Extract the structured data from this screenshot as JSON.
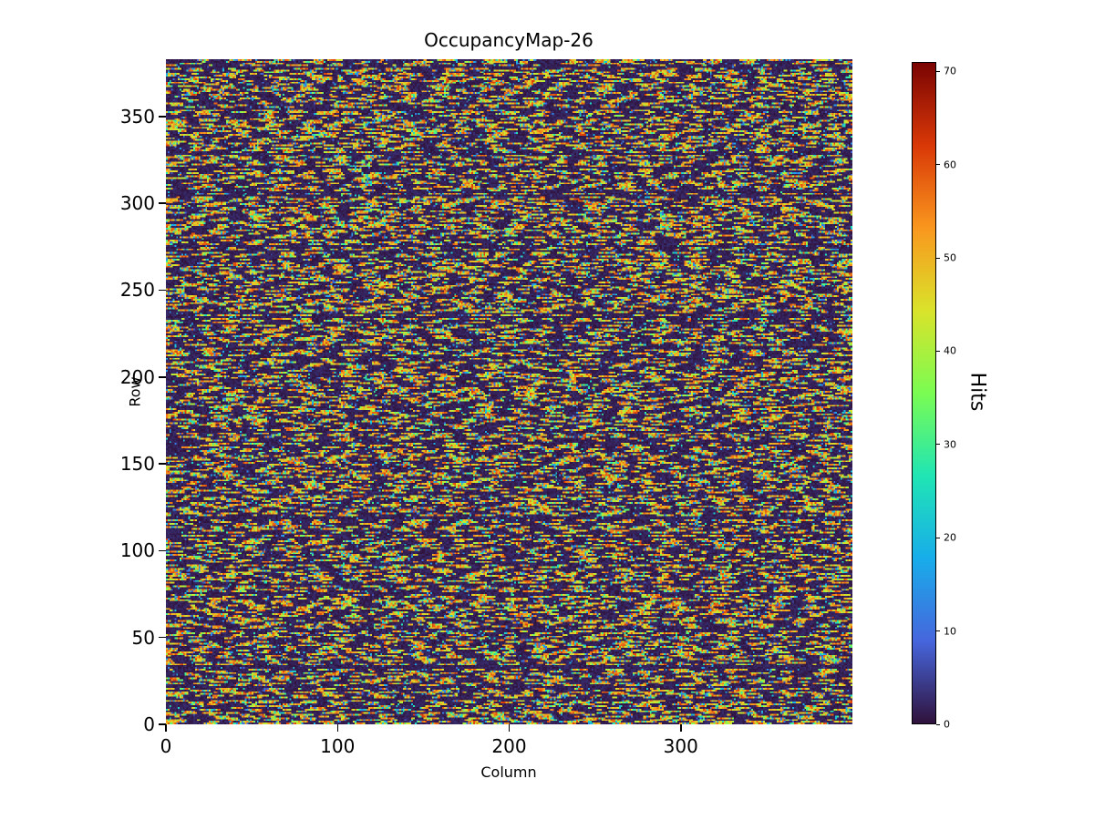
{
  "figure": {
    "background": "#ffffff"
  },
  "chart_data": {
    "type": "heatmap",
    "title": "OccupancyMap-26",
    "xlabel": "Column",
    "ylabel": "Row",
    "x_range": [
      0,
      400
    ],
    "y_range": [
      0,
      383
    ],
    "x_ticks": [
      0,
      100,
      200,
      300
    ],
    "y_ticks": [
      0,
      50,
      100,
      150,
      200,
      250,
      300,
      350
    ],
    "grid": false,
    "colorbar": {
      "label": "Hits",
      "ticks": [
        0,
        10,
        20,
        30,
        40,
        50,
        60,
        70
      ],
      "vmin": 0,
      "vmax": 71,
      "colormap": "turbo"
    },
    "pattern": {
      "description": "Dense noisy occupancy map: dark near-zero background (~0-3 hits) with horizontal dashed streaks of high occupancy (~40-62 hits, orange/yellow) on nearly every row, plus scattered mid-value pixels (~5-30 hits, blue/cyan/green)",
      "background_value_range": [
        0,
        3
      ],
      "streak_value_range": [
        40,
        62
      ],
      "speck_value_range": [
        5,
        30
      ],
      "streak_pixel_fraction": 0.45,
      "seed": 26
    }
  }
}
